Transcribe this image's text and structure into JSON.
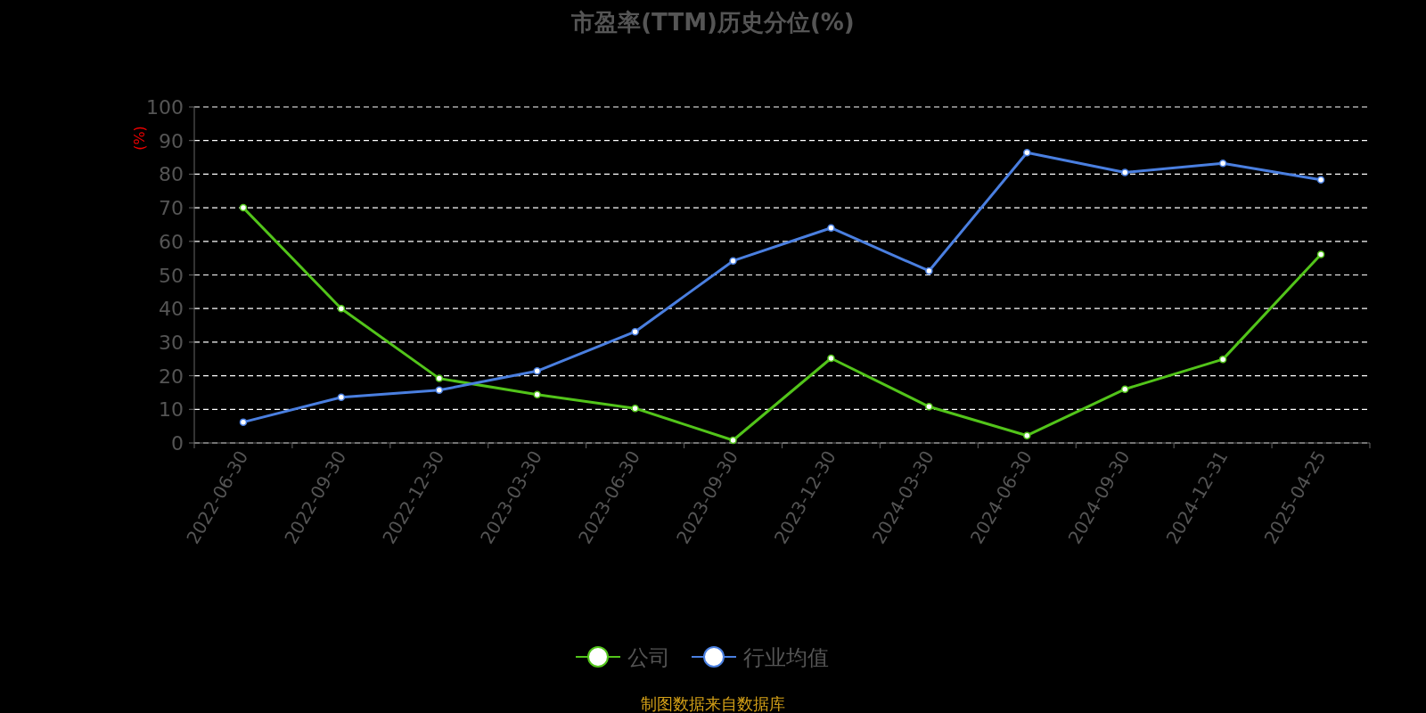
{
  "chart_data": {
    "type": "line",
    "title": "市盈率(TTM)历史分位(%)",
    "ylabel": "(%)",
    "categories": [
      "2022-06-30",
      "2022-09-30",
      "2022-12-30",
      "2023-03-30",
      "2023-06-30",
      "2023-09-30",
      "2023-12-30",
      "2024-03-30",
      "2024-06-30",
      "2024-09-30",
      "2024-12-31",
      "2025-04-25"
    ],
    "series": [
      {
        "name": "公司",
        "color": "#52c41a",
        "values": [
          70,
          40,
          19.2,
          14.4,
          10.3,
          0.8,
          25.2,
          10.8,
          2.2,
          16,
          24.9,
          56.1
        ]
      },
      {
        "name": "行业均值",
        "color": "#4a7fe0",
        "values": [
          6.2,
          13.6,
          15.7,
          21.4,
          33.1,
          54.2,
          64,
          51.2,
          86.4,
          80.5,
          83.2,
          78.3
        ]
      }
    ],
    "ylim": [
      0,
      100
    ],
    "yticks": [
      0,
      10,
      20,
      30,
      40,
      50,
      60,
      70,
      80,
      90,
      100
    ],
    "grid": "y",
    "legend": "bottom",
    "marker": "circle",
    "line_style": "solid",
    "annotations": [
      "制图数据来自数据库"
    ]
  }
}
